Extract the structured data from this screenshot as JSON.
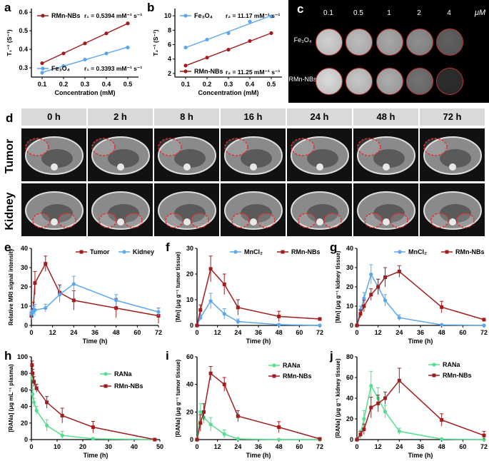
{
  "colors": {
    "red": "#a11d1d",
    "blue": "#5aa7f0",
    "green": "#54e08c",
    "black": "#000000"
  },
  "panel_a": {
    "letter": "a",
    "chart_data": {
      "type": "scatter",
      "title": "",
      "xlabel": "Concentration (mM)",
      "ylabel": "T₁⁻¹ (S⁻¹)",
      "xticks": [
        "0.1",
        "0.2",
        "0.3",
        "0.4",
        "0.5"
      ],
      "yticks": [
        "0.3",
        "0.4",
        "0.5",
        "0.6"
      ],
      "xlim": [
        0.05,
        0.55
      ],
      "ylim": [
        0.25,
        0.62
      ],
      "series": [
        {
          "name": "RMn-NBs",
          "color": "red",
          "x": [
            0.1,
            0.2,
            0.3,
            0.4,
            0.5
          ],
          "y": [
            0.325,
            0.378,
            0.432,
            0.486,
            0.54
          ],
          "annotation": "r₁ = 0.5394 mM⁻¹ s⁻¹"
        },
        {
          "name": "Fe₃O₄",
          "color": "blue",
          "x": [
            0.1,
            0.2,
            0.3,
            0.4,
            0.5
          ],
          "y": [
            0.273,
            0.31,
            0.345,
            0.378,
            0.41
          ],
          "annotation": "r₁ = 0.3393 mM⁻¹ s⁻¹"
        }
      ]
    }
  },
  "panel_b": {
    "letter": "b",
    "chart_data": {
      "type": "scatter",
      "title": "",
      "xlabel": "Concentration (mM)",
      "ylabel": "T₂⁻¹ (S⁻¹)",
      "xticks": [
        "0.1",
        "0.2",
        "0.3",
        "0.4",
        "0.5"
      ],
      "yticks": [
        "2",
        "4",
        "6",
        "8",
        "10"
      ],
      "xlim": [
        0.05,
        0.55
      ],
      "ylim": [
        1.5,
        11
      ],
      "series": [
        {
          "name": "Fe₃O₄",
          "color": "blue",
          "x": [
            0.1,
            0.2,
            0.3,
            0.4,
            0.5
          ],
          "y": [
            5.6,
            6.7,
            7.6,
            9.2,
            9.9
          ],
          "annotation": "r₂ = 11.17 mM⁻¹ s⁻¹"
        },
        {
          "name": "RMn-NBs",
          "color": "red",
          "x": [
            0.1,
            0.2,
            0.3,
            0.4,
            0.5
          ],
          "y": [
            3.1,
            4.2,
            5.3,
            6.5,
            7.6
          ],
          "annotation": "r₂ = 11.25 mM⁻¹ s⁻¹"
        }
      ]
    }
  },
  "panel_c": {
    "letter": "c",
    "concentrations": [
      "0.1",
      "0.5",
      "1",
      "2",
      "4"
    ],
    "unit": "μM",
    "rows": [
      {
        "label": "Fe₃O₄",
        "brightness": [
          0.82,
          0.74,
          0.66,
          0.56,
          0.38
        ]
      },
      {
        "label": "RMn-NBs",
        "brightness": [
          0.86,
          0.78,
          0.68,
          0.45,
          0.18
        ]
      }
    ]
  },
  "panel_d": {
    "letter": "d",
    "timepoints": [
      "0 h",
      "2 h",
      "8 h",
      "16 h",
      "24 h",
      "48 h",
      "72 h"
    ],
    "rows": [
      "Tumor",
      "Kidney"
    ]
  },
  "panel_e": {
    "letter": "e",
    "chart_data": {
      "type": "line",
      "xlabel": "Time (h)",
      "ylabel": "Relative MRI signal intensity",
      "xticks": [
        "0",
        "12",
        "24",
        "36",
        "48",
        "60",
        "72"
      ],
      "yticks": [
        "0",
        "10",
        "20",
        "30",
        "40"
      ],
      "xlim": [
        0,
        72
      ],
      "ylim": [
        0,
        40
      ],
      "series": [
        {
          "name": "Tumor",
          "color": "red",
          "x": [
            0,
            1,
            2,
            8,
            16,
            24,
            48,
            72
          ],
          "y": [
            5,
            8,
            22,
            32,
            17,
            13,
            9,
            5
          ],
          "err": [
            2,
            4,
            6,
            4,
            4,
            5,
            5,
            4
          ]
        },
        {
          "name": "Kidney",
          "color": "blue",
          "x": [
            0,
            1,
            2,
            8,
            16,
            24,
            48,
            72
          ],
          "y": [
            6,
            7,
            8,
            9,
            16,
            21.5,
            13,
            7
          ],
          "err": [
            2,
            3,
            3,
            2,
            4,
            4,
            3,
            2
          ]
        }
      ]
    }
  },
  "panel_f": {
    "letter": "f",
    "chart_data": {
      "type": "line",
      "xlabel": "Time (h)",
      "ylabel": "[Mn] (μg g⁻¹ tumor tissue)",
      "xticks": [
        "0",
        "12",
        "24",
        "36",
        "48",
        "60",
        "72"
      ],
      "yticks": [
        "0",
        "10",
        "20",
        "30"
      ],
      "xlim": [
        0,
        72
      ],
      "ylim": [
        0,
        30
      ],
      "series": [
        {
          "name": "MnCl₂",
          "color": "blue",
          "x": [
            0,
            2,
            8,
            16,
            24,
            48,
            72
          ],
          "y": [
            0,
            3,
            9.5,
            4.5,
            1.5,
            0.3,
            0
          ],
          "err": [
            0,
            1,
            3,
            2,
            1,
            0.3,
            0
          ]
        },
        {
          "name": "RMn-NBs",
          "color": "red",
          "x": [
            0,
            2,
            8,
            16,
            24,
            48,
            72
          ],
          "y": [
            0,
            6,
            22,
            16,
            7,
            3.5,
            2.5
          ],
          "err": [
            0,
            2,
            5,
            4,
            3,
            2,
            0.5
          ]
        }
      ]
    }
  },
  "panel_g": {
    "letter": "g",
    "chart_data": {
      "type": "line",
      "xlabel": "Time (h)",
      "ylabel": "[Mn] (μg g⁻¹ kidney tissue)",
      "xticks": [
        "0",
        "12",
        "24",
        "36",
        "48",
        "60",
        "72"
      ],
      "yticks": [
        "0",
        "10",
        "20",
        "30",
        "40"
      ],
      "xlim": [
        0,
        72
      ],
      "ylim": [
        0,
        40
      ],
      "series": [
        {
          "name": "MnCl₂",
          "color": "blue",
          "x": [
            0,
            2,
            4,
            8,
            12,
            16,
            24,
            48,
            72
          ],
          "y": [
            0,
            8,
            14,
            26.5,
            20,
            13,
            4,
            0.3,
            0
          ],
          "err": [
            0,
            2,
            3,
            5,
            4,
            3,
            1.5,
            0.3,
            0
          ]
        },
        {
          "name": "RMn-NBs",
          "color": "red",
          "x": [
            0,
            2,
            4,
            8,
            12,
            16,
            24,
            48,
            72
          ],
          "y": [
            0,
            6,
            10,
            16,
            20,
            25,
            28,
            9.5,
            3
          ],
          "err": [
            0,
            2,
            3,
            3,
            4,
            5,
            3,
            3,
            0.5
          ]
        }
      ]
    }
  },
  "panel_h": {
    "letter": "h",
    "chart_data": {
      "type": "line",
      "xlabel": "Time (h)",
      "ylabel": "[RANa] (μg mL⁻¹ plasma)",
      "xticks": [
        "0",
        "10",
        "20",
        "30",
        "40",
        "50"
      ],
      "yticks": [
        "0",
        "20",
        "40",
        "60",
        "80",
        "100"
      ],
      "xlim": [
        0,
        50
      ],
      "ylim": [
        0,
        100
      ],
      "series": [
        {
          "name": "RANa",
          "color": "green",
          "x": [
            0.25,
            0.5,
            1,
            2,
            6,
            12,
            24,
            48
          ],
          "y": [
            75,
            55,
            45,
            35,
            17,
            5,
            1,
            0
          ],
          "err": [
            6,
            6,
            5,
            5,
            7,
            5,
            1,
            0
          ]
        },
        {
          "name": "RMn-NBs",
          "color": "red",
          "x": [
            0.25,
            0.5,
            1,
            2,
            6,
            12,
            24,
            48
          ],
          "y": [
            90,
            80,
            70,
            62,
            45,
            29,
            15,
            0
          ],
          "err": [
            5,
            5,
            6,
            5,
            7,
            9,
            7,
            0
          ]
        }
      ]
    }
  },
  "panel_i": {
    "letter": "i",
    "chart_data": {
      "type": "line",
      "xlabel": "Time (h)",
      "ylabel": "[RANa] (μg g⁻¹ tumor tissue)",
      "xticks": [
        "0",
        "12",
        "24",
        "36",
        "48",
        "60",
        "72"
      ],
      "yticks": [
        "0",
        "20",
        "40",
        "60"
      ],
      "xlim": [
        0,
        72
      ],
      "ylim": [
        0,
        60
      ],
      "series": [
        {
          "name": "RANa",
          "color": "green",
          "x": [
            0,
            2,
            4,
            8,
            16,
            24,
            48,
            72
          ],
          "y": [
            0,
            20,
            16,
            11,
            4,
            0.5,
            0,
            0
          ],
          "err": [
            0,
            6,
            4,
            5,
            3,
            0.5,
            0,
            0
          ]
        },
        {
          "name": "RMn-NBs",
          "color": "red",
          "x": [
            0,
            2,
            4,
            8,
            16,
            24,
            48,
            72
          ],
          "y": [
            0,
            12,
            20,
            48,
            40,
            17,
            9,
            0.5
          ],
          "err": [
            0,
            6,
            6,
            5,
            5,
            4,
            4,
            0.5
          ]
        }
      ]
    }
  },
  "panel_j": {
    "letter": "j",
    "chart_data": {
      "type": "line",
      "xlabel": "Time (h)",
      "ylabel": "[RANa] (μg g⁻¹ kidney tissue)",
      "xticks": [
        "0",
        "12",
        "24",
        "36",
        "48",
        "60",
        "72"
      ],
      "yticks": [
        "0",
        "20",
        "40",
        "60",
        "80"
      ],
      "xlim": [
        0,
        72
      ],
      "ylim": [
        0,
        80
      ],
      "series": [
        {
          "name": "RANa",
          "color": "green",
          "x": [
            0,
            2,
            4,
            8,
            12,
            16,
            24,
            48,
            72
          ],
          "y": [
            0,
            5,
            20,
            52,
            40,
            27,
            8,
            0.5,
            0
          ],
          "err": [
            0,
            4,
            8,
            14,
            10,
            6,
            3,
            0.5,
            0
          ]
        },
        {
          "name": "RMn-NBs",
          "color": "red",
          "x": [
            0,
            2,
            4,
            8,
            12,
            16,
            24,
            48,
            72
          ],
          "y": [
            0,
            5,
            10,
            31,
            35,
            40,
            57,
            19,
            4
          ],
          "err": [
            0,
            3,
            5,
            10,
            8,
            6,
            12,
            6,
            4
          ]
        }
      ]
    }
  }
}
